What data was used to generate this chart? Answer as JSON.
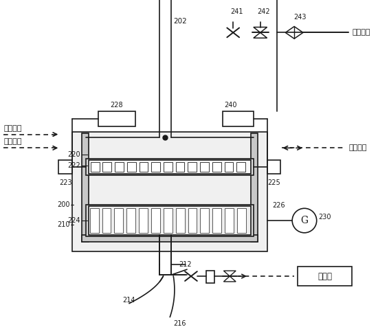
{
  "bg_color": "#ffffff",
  "line_color": "#1a1a1a",
  "labels": {
    "process_gas": "工艺气体",
    "heat_liquid_in": "加热液进",
    "heat_liquid_out": "加热液出",
    "air_inlet": "空气入口",
    "vacuum_pump": "真空泵"
  },
  "numbers": {
    "202": "202",
    "200": "200",
    "210": "210",
    "212": "212",
    "214": "214",
    "216": "216",
    "220": "220",
    "222": "222",
    "224": "224",
    "226": "226",
    "223": "223",
    "225": "225",
    "228": "228",
    "230": "230",
    "240": "240",
    "241": "241",
    "242": "242",
    "243": "243"
  }
}
